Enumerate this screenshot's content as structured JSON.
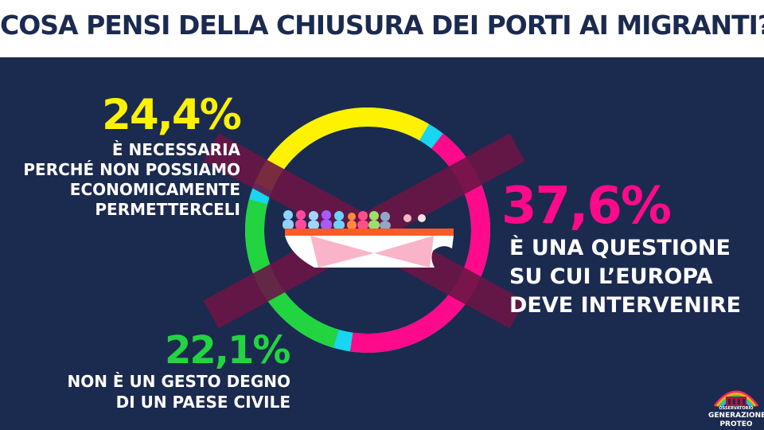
{
  "title": "COSA PENSI DELLA CHIUSURA DEI PORTI AI MIGRANTI?",
  "colors": {
    "background": "#1b2a4f",
    "yellow": "#fff200",
    "pink": "#ff0a8a",
    "green": "#22d43f",
    "cyan": "#18d5f2"
  },
  "chart_data": {
    "type": "pie",
    "style": "donut",
    "slices": [
      {
        "pct_label": "37,6%",
        "value": 37.6,
        "color": "#ff0a8a",
        "lines": [
          "È UNA QUESTIONE",
          "SU CUI L’EUROPA",
          "DEVE INTERVENIRE"
        ]
      },
      {
        "pct_label": "24,4%",
        "value": 24.4,
        "color": "#fff200",
        "lines": [
          "È NECESSARIA",
          "PERCHÉ NON POSSIAMO",
          "ECONOMICAMENTE",
          "PERMETTERCELI"
        ]
      },
      {
        "pct_label": "22,1%",
        "value": 22.1,
        "color": "#22d43f",
        "lines": [
          "NON È UN GESTO DEGNO",
          "DI UN PAESE CIVILE"
        ]
      }
    ],
    "gap_color": "#18d5f2",
    "center_icon": "migrant-boat-crossed-out-icon"
  },
  "logo": {
    "icon": "colosseum-rainbow-icon",
    "small": "OSSERVATORIO",
    "line1": "GENERAZIONE",
    "line2": "PROTEO"
  }
}
